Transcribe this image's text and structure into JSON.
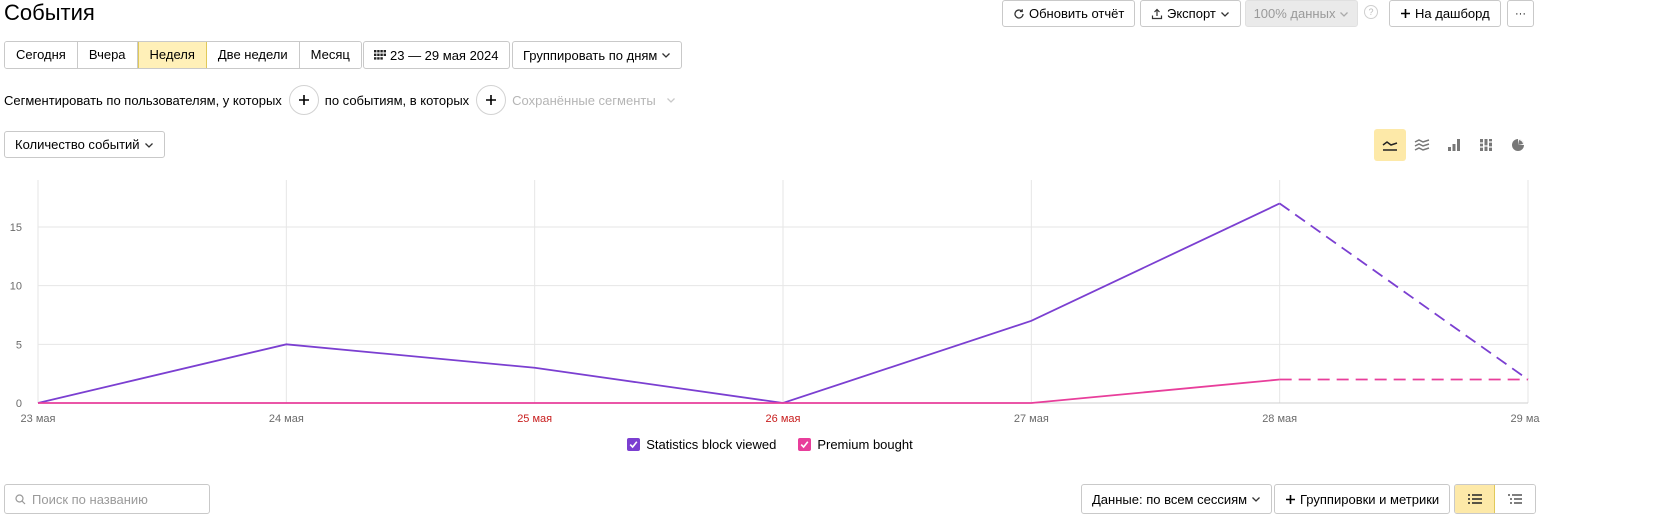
{
  "header": {
    "title": "События",
    "refresh_label": "Обновить отчёт",
    "export_label": "Экспорт",
    "data_sample_label": "100% данных",
    "help_label": "?",
    "dashboard_label": "На дашборд",
    "more_label": "···"
  },
  "period": {
    "tabs": [
      "Сегодня",
      "Вчера",
      "Неделя",
      "Две недели",
      "Месяц"
    ],
    "active": "Неделя",
    "date_range": "23 — 29 мая 2024",
    "grouping": "Группировать по дням"
  },
  "segment": {
    "users_label": "Сегментировать по пользователям, у которых",
    "events_label": "по событиям, в которых",
    "saved_label": "Сохранённые сегменты"
  },
  "metric": {
    "label": "Количество событий"
  },
  "chart_data": {
    "type": "line",
    "categories": [
      "23 мая",
      "24 мая",
      "25 мая",
      "26 мая",
      "27 мая",
      "28 мая",
      "29 мая"
    ],
    "weekend": [
      false,
      false,
      true,
      true,
      false,
      false,
      false
    ],
    "ylim": [
      0,
      19
    ],
    "yticks": [
      0,
      5,
      10,
      15
    ],
    "series": [
      {
        "name": "Statistics block viewed",
        "color": "#7b3fd1",
        "values": [
          0,
          5,
          3,
          0,
          7,
          17,
          2
        ],
        "incomplete_from": 5
      },
      {
        "name": "Premium bought",
        "color": "#e83e9b",
        "values": [
          0,
          0,
          0,
          0,
          0,
          2,
          2
        ],
        "incomplete_from": 5
      }
    ]
  },
  "legend": {
    "items": [
      {
        "label": "Statistics block viewed",
        "color": "#7b3fd1"
      },
      {
        "label": "Premium bought",
        "color": "#e83e9b"
      }
    ]
  },
  "footer": {
    "search_placeholder": "Поиск по названию",
    "data_scope": "Данные: по всем сессиям",
    "groupings_label": "Группировки и метрики"
  },
  "colors": {
    "accent": "#fde9a8",
    "border": "#c9c9c9"
  }
}
